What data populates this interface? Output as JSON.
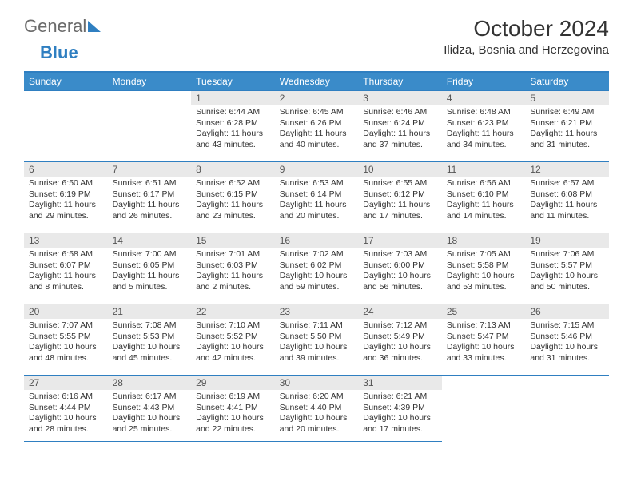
{
  "colors": {
    "accent": "#2f7fc1",
    "header_bg": "#3a8bc9",
    "header_text": "#ffffff",
    "daynum_bg": "#e9e9e9",
    "body_text": "#333333",
    "logo_gray": "#6b6b6b"
  },
  "logo": {
    "part1": "General",
    "part2": "Blue"
  },
  "title": "October 2024",
  "location": "Ilidza, Bosnia and Herzegovina",
  "weekdays": [
    "Sunday",
    "Monday",
    "Tuesday",
    "Wednesday",
    "Thursday",
    "Friday",
    "Saturday"
  ],
  "weeks": [
    [
      {
        "empty": true
      },
      {
        "empty": true
      },
      {
        "num": "1",
        "sunrise": "Sunrise: 6:44 AM",
        "sunset": "Sunset: 6:28 PM",
        "day": "Daylight: 11 hours and 43 minutes."
      },
      {
        "num": "2",
        "sunrise": "Sunrise: 6:45 AM",
        "sunset": "Sunset: 6:26 PM",
        "day": "Daylight: 11 hours and 40 minutes."
      },
      {
        "num": "3",
        "sunrise": "Sunrise: 6:46 AM",
        "sunset": "Sunset: 6:24 PM",
        "day": "Daylight: 11 hours and 37 minutes."
      },
      {
        "num": "4",
        "sunrise": "Sunrise: 6:48 AM",
        "sunset": "Sunset: 6:23 PM",
        "day": "Daylight: 11 hours and 34 minutes."
      },
      {
        "num": "5",
        "sunrise": "Sunrise: 6:49 AM",
        "sunset": "Sunset: 6:21 PM",
        "day": "Daylight: 11 hours and 31 minutes."
      }
    ],
    [
      {
        "num": "6",
        "sunrise": "Sunrise: 6:50 AM",
        "sunset": "Sunset: 6:19 PM",
        "day": "Daylight: 11 hours and 29 minutes."
      },
      {
        "num": "7",
        "sunrise": "Sunrise: 6:51 AM",
        "sunset": "Sunset: 6:17 PM",
        "day": "Daylight: 11 hours and 26 minutes."
      },
      {
        "num": "8",
        "sunrise": "Sunrise: 6:52 AM",
        "sunset": "Sunset: 6:15 PM",
        "day": "Daylight: 11 hours and 23 minutes."
      },
      {
        "num": "9",
        "sunrise": "Sunrise: 6:53 AM",
        "sunset": "Sunset: 6:14 PM",
        "day": "Daylight: 11 hours and 20 minutes."
      },
      {
        "num": "10",
        "sunrise": "Sunrise: 6:55 AM",
        "sunset": "Sunset: 6:12 PM",
        "day": "Daylight: 11 hours and 17 minutes."
      },
      {
        "num": "11",
        "sunrise": "Sunrise: 6:56 AM",
        "sunset": "Sunset: 6:10 PM",
        "day": "Daylight: 11 hours and 14 minutes."
      },
      {
        "num": "12",
        "sunrise": "Sunrise: 6:57 AM",
        "sunset": "Sunset: 6:08 PM",
        "day": "Daylight: 11 hours and 11 minutes."
      }
    ],
    [
      {
        "num": "13",
        "sunrise": "Sunrise: 6:58 AM",
        "sunset": "Sunset: 6:07 PM",
        "day": "Daylight: 11 hours and 8 minutes."
      },
      {
        "num": "14",
        "sunrise": "Sunrise: 7:00 AM",
        "sunset": "Sunset: 6:05 PM",
        "day": "Daylight: 11 hours and 5 minutes."
      },
      {
        "num": "15",
        "sunrise": "Sunrise: 7:01 AM",
        "sunset": "Sunset: 6:03 PM",
        "day": "Daylight: 11 hours and 2 minutes."
      },
      {
        "num": "16",
        "sunrise": "Sunrise: 7:02 AM",
        "sunset": "Sunset: 6:02 PM",
        "day": "Daylight: 10 hours and 59 minutes."
      },
      {
        "num": "17",
        "sunrise": "Sunrise: 7:03 AM",
        "sunset": "Sunset: 6:00 PM",
        "day": "Daylight: 10 hours and 56 minutes."
      },
      {
        "num": "18",
        "sunrise": "Sunrise: 7:05 AM",
        "sunset": "Sunset: 5:58 PM",
        "day": "Daylight: 10 hours and 53 minutes."
      },
      {
        "num": "19",
        "sunrise": "Sunrise: 7:06 AM",
        "sunset": "Sunset: 5:57 PM",
        "day": "Daylight: 10 hours and 50 minutes."
      }
    ],
    [
      {
        "num": "20",
        "sunrise": "Sunrise: 7:07 AM",
        "sunset": "Sunset: 5:55 PM",
        "day": "Daylight: 10 hours and 48 minutes."
      },
      {
        "num": "21",
        "sunrise": "Sunrise: 7:08 AM",
        "sunset": "Sunset: 5:53 PM",
        "day": "Daylight: 10 hours and 45 minutes."
      },
      {
        "num": "22",
        "sunrise": "Sunrise: 7:10 AM",
        "sunset": "Sunset: 5:52 PM",
        "day": "Daylight: 10 hours and 42 minutes."
      },
      {
        "num": "23",
        "sunrise": "Sunrise: 7:11 AM",
        "sunset": "Sunset: 5:50 PM",
        "day": "Daylight: 10 hours and 39 minutes."
      },
      {
        "num": "24",
        "sunrise": "Sunrise: 7:12 AM",
        "sunset": "Sunset: 5:49 PM",
        "day": "Daylight: 10 hours and 36 minutes."
      },
      {
        "num": "25",
        "sunrise": "Sunrise: 7:13 AM",
        "sunset": "Sunset: 5:47 PM",
        "day": "Daylight: 10 hours and 33 minutes."
      },
      {
        "num": "26",
        "sunrise": "Sunrise: 7:15 AM",
        "sunset": "Sunset: 5:46 PM",
        "day": "Daylight: 10 hours and 31 minutes."
      }
    ],
    [
      {
        "num": "27",
        "sunrise": "Sunrise: 6:16 AM",
        "sunset": "Sunset: 4:44 PM",
        "day": "Daylight: 10 hours and 28 minutes."
      },
      {
        "num": "28",
        "sunrise": "Sunrise: 6:17 AM",
        "sunset": "Sunset: 4:43 PM",
        "day": "Daylight: 10 hours and 25 minutes."
      },
      {
        "num": "29",
        "sunrise": "Sunrise: 6:19 AM",
        "sunset": "Sunset: 4:41 PM",
        "day": "Daylight: 10 hours and 22 minutes."
      },
      {
        "num": "30",
        "sunrise": "Sunrise: 6:20 AM",
        "sunset": "Sunset: 4:40 PM",
        "day": "Daylight: 10 hours and 20 minutes."
      },
      {
        "num": "31",
        "sunrise": "Sunrise: 6:21 AM",
        "sunset": "Sunset: 4:39 PM",
        "day": "Daylight: 10 hours and 17 minutes."
      },
      {
        "empty": true
      },
      {
        "empty": true
      }
    ]
  ]
}
